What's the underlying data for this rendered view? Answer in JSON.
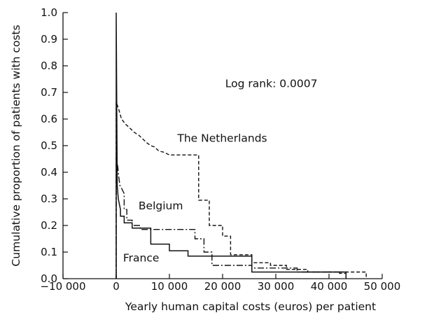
{
  "chart_data": {
    "type": "line",
    "subtype": "step",
    "xlabel": "Yearly human capital costs (euros) per patient",
    "ylabel": "Cumulative proportion of patients with costs",
    "xlim": [
      -10000,
      50000
    ],
    "ylim": [
      0.0,
      1.0
    ],
    "x_tick_labels": [
      "−10 000",
      "0",
      "10 000",
      "20 000",
      "30 000",
      "40 000",
      "50 000"
    ],
    "x_ticks": [
      -10000,
      0,
      10000,
      20000,
      30000,
      40000,
      50000
    ],
    "y_tick_labels": [
      "0.0",
      "0.1",
      "0.2",
      "0.3",
      "0.4",
      "0.5",
      "0.6",
      "0.7",
      "0.8",
      "0.9",
      "1.0"
    ],
    "y_ticks": [
      0.0,
      0.1,
      0.2,
      0.3,
      0.4,
      0.5,
      0.6,
      0.7,
      0.8,
      0.9,
      1.0
    ],
    "grid": false,
    "annotations": [
      {
        "text": "Log rank: 0.0007",
        "x": 20500,
        "y": 0.72
      },
      {
        "text": "The Netherlands",
        "x": 11500,
        "y": 0.515
      },
      {
        "text": "Belgium",
        "x": 4200,
        "y": 0.26
      },
      {
        "text": "France",
        "x": 1300,
        "y": 0.065
      }
    ],
    "series": [
      {
        "style": "dashed",
        "color": "#111111",
        "x": [
          0,
          0,
          500,
          1000,
          1800,
          2600,
          3400,
          4200,
          5000,
          5800,
          6500,
          7200,
          8000,
          9000,
          9500,
          10000,
          12000,
          13000,
          14000,
          15500,
          15500,
          17500,
          17500,
          20000,
          20000,
          21500,
          21500,
          25500,
          25500,
          29000,
          29000,
          32000,
          32000,
          36000,
          36000,
          47000,
          47000
        ],
        "y": [
          0,
          0.665,
          0.635,
          0.6,
          0.58,
          0.565,
          0.55,
          0.54,
          0.525,
          0.51,
          0.5,
          0.495,
          0.48,
          0.475,
          0.47,
          0.465,
          0.465,
          0.465,
          0.465,
          0.465,
          0.295,
          0.295,
          0.2,
          0.2,
          0.16,
          0.16,
          0.09,
          0.09,
          0.06,
          0.06,
          0.05,
          0.05,
          0.035,
          0.035,
          0.025,
          0.025,
          0
        ]
      },
      {
        "style": "dash-dot",
        "color": "#111111",
        "x": [
          0,
          0,
          300,
          500,
          700,
          1000,
          1500,
          1500,
          2000,
          2000,
          3000,
          3000,
          4500,
          4500,
          14800,
          14800,
          16500,
          16500,
          18000,
          18000,
          25500,
          25500,
          34000,
          34000,
          42000,
          42000,
          43200,
          43200
        ],
        "y": [
          0,
          0.46,
          0.42,
          0.38,
          0.35,
          0.34,
          0.32,
          0.26,
          0.26,
          0.22,
          0.22,
          0.2,
          0.2,
          0.185,
          0.185,
          0.15,
          0.15,
          0.1,
          0.1,
          0.05,
          0.05,
          0.04,
          0.04,
          0.025,
          0.025,
          0.02,
          0.02,
          0
        ]
      },
      {
        "style": "solid",
        "color": "#111111",
        "x": [
          0,
          0,
          200,
          400,
          800,
          800,
          1500,
          1500,
          3000,
          3000,
          6500,
          6500,
          10000,
          10000,
          13500,
          13500,
          25500,
          25500,
          43200,
          43200
        ],
        "y": [
          0,
          1.0,
          0.35,
          0.3,
          0.26,
          0.235,
          0.235,
          0.21,
          0.21,
          0.19,
          0.19,
          0.13,
          0.13,
          0.105,
          0.105,
          0.085,
          0.085,
          0.025,
          0.025,
          0
        ]
      }
    ]
  }
}
